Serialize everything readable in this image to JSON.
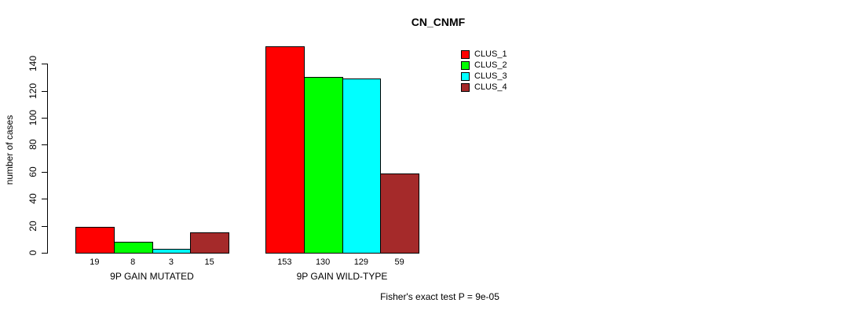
{
  "title": "CN_CNMF",
  "chart_data": {
    "type": "bar",
    "title": "CN_CNMF",
    "ylabel": "number of cases",
    "xlabel": "",
    "groups": [
      {
        "label": "9P GAIN MUTATED",
        "values": [
          19,
          8,
          3,
          15
        ]
      },
      {
        "label": "9P GAIN WILD-TYPE",
        "values": [
          153,
          130,
          129,
          59
        ]
      }
    ],
    "series": [
      {
        "name": "CLUS_1",
        "color": "#ff0000"
      },
      {
        "name": "CLUS_2",
        "color": "#00ff00"
      },
      {
        "name": "CLUS_3",
        "color": "#00ffff"
      },
      {
        "name": "CLUS_4",
        "color": "#a52a2a"
      }
    ],
    "y_ticks": [
      0,
      20,
      40,
      60,
      80,
      100,
      120,
      140
    ],
    "ylim": [
      0,
      140
    ],
    "grid": false,
    "legend_position": "top-right",
    "bar_value_labels_shown": true
  },
  "annotations": {
    "footer": "Fisher's exact test P = 9e-05"
  }
}
